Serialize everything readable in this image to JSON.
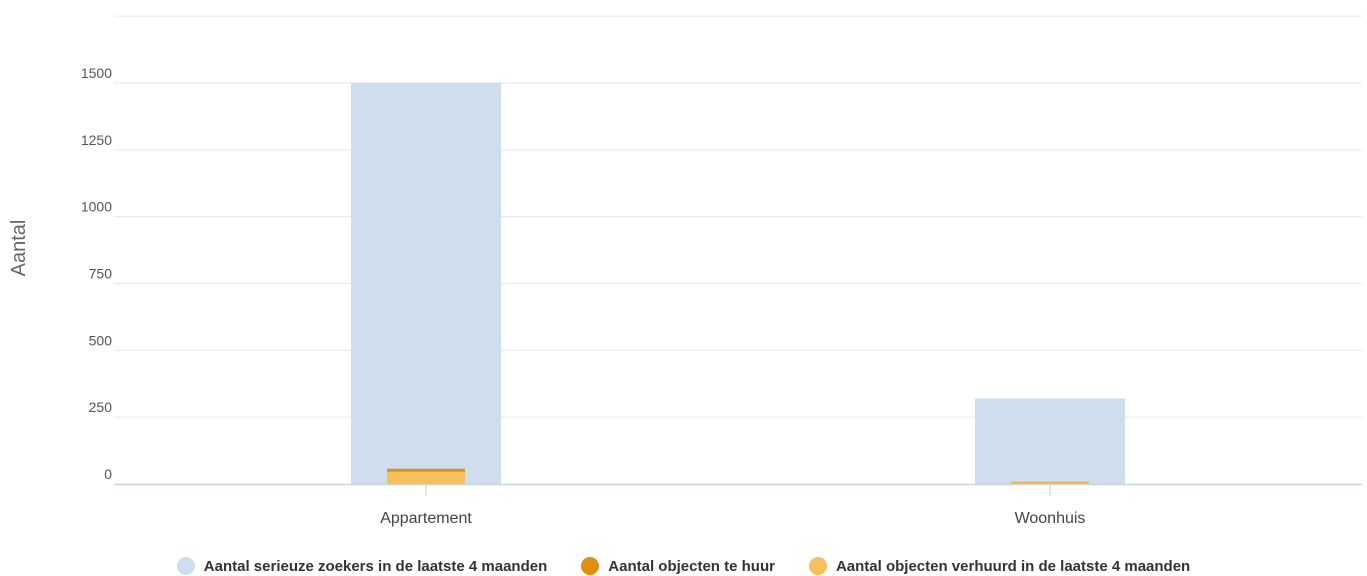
{
  "chart_data": {
    "type": "bar",
    "ylabel": "Aantal",
    "xlabel": "",
    "ylim": [
      0,
      1750
    ],
    "yticks": [
      0,
      250,
      500,
      750,
      1000,
      1250,
      1500
    ],
    "grid": true,
    "legend_position": "bottom",
    "categories": [
      "Appartement",
      "Woonhuis"
    ],
    "series": [
      {
        "name": "Aantal serieuze zoekers in de laatste 4 maanden",
        "color": "#cfdeed",
        "values": [
          1500,
          320
        ]
      },
      {
        "name": "Aantal objecten te huur",
        "color": "#e0900a",
        "values": [
          57,
          8
        ]
      },
      {
        "name": "Aantal objecten verhuurd in de laatste 4 maanden",
        "color": "#f6c15c",
        "values": [
          46,
          6
        ]
      }
    ]
  }
}
